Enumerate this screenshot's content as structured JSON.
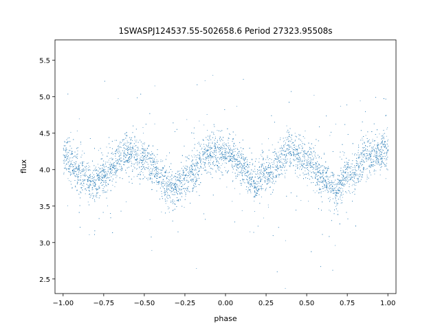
{
  "chart_data": {
    "type": "scatter",
    "title": "1SWASPJ124537.55-502658.6 Period 27323.95508s",
    "xlabel": "phase",
    "ylabel": "flux",
    "xlim": [
      -1.05,
      1.05
    ],
    "ylim": [
      2.3,
      5.78
    ],
    "xticks": [
      -1.0,
      -0.75,
      -0.5,
      -0.25,
      0.0,
      0.25,
      0.5,
      0.75,
      1.0
    ],
    "xtick_labels": [
      "−1.00",
      "−0.75",
      "−0.50",
      "−0.25",
      "0.00",
      "0.25",
      "0.50",
      "0.75",
      "1.00"
    ],
    "yticks": [
      2.5,
      3.0,
      3.5,
      4.0,
      4.5,
      5.0,
      5.5
    ],
    "ytick_labels": [
      "2.5",
      "3.0",
      "3.5",
      "4.0",
      "4.5",
      "5.0",
      "5.5"
    ],
    "grid": false,
    "marker_color": "#1f77b4",
    "series": [
      {
        "name": "",
        "trend_phase": [
          -1.0,
          -0.9,
          -0.82,
          -0.75,
          -0.6,
          -0.5,
          -0.4,
          -0.32,
          -0.25,
          -0.1,
          0.0,
          0.1,
          0.18,
          0.25,
          0.4,
          0.5,
          0.6,
          0.68,
          0.75,
          0.9,
          1.0
        ],
        "trend_flux": [
          4.2,
          3.95,
          3.8,
          3.95,
          4.25,
          4.15,
          3.9,
          3.7,
          3.9,
          4.22,
          4.25,
          4.05,
          3.8,
          3.95,
          4.25,
          4.15,
          3.9,
          3.7,
          3.95,
          4.2,
          4.25
        ]
      }
    ]
  }
}
